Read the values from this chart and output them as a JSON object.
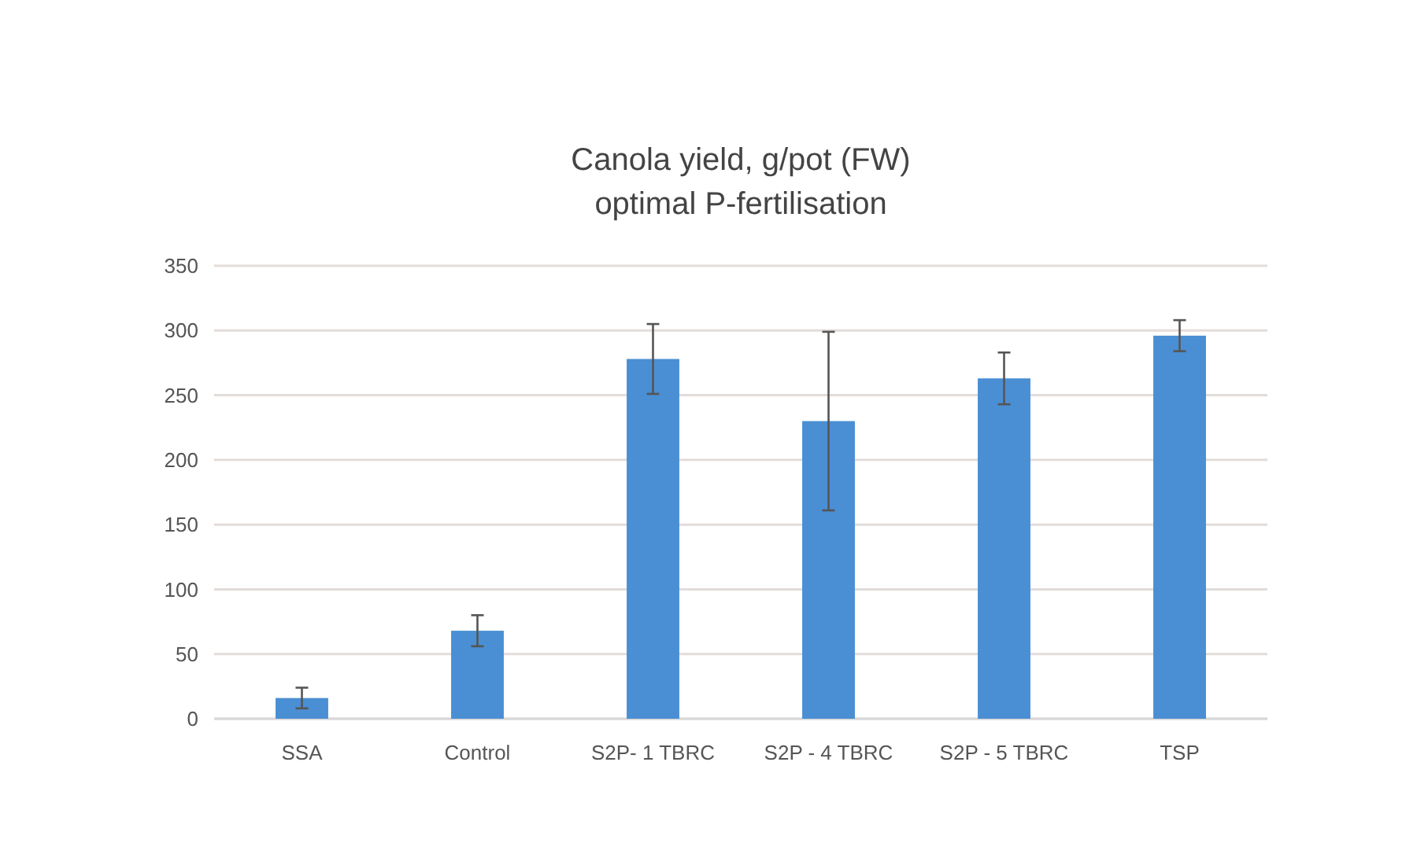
{
  "chart_data": {
    "type": "bar",
    "title": "Canola yield, g/pot (FW)",
    "subtitle": "optimal P-fertilisation",
    "categories": [
      "SSA",
      "Control",
      "S2P- 1 TBRC",
      "S2P - 4 TBRC",
      "S2P - 5 TBRC",
      "TSP"
    ],
    "values": [
      16,
      68,
      278,
      230,
      263,
      296
    ],
    "errors": [
      8,
      12,
      27,
      69,
      20,
      12
    ],
    "color": "#4a8fd4",
    "ylim": [
      0,
      350
    ],
    "yticks": [
      0,
      50,
      100,
      150,
      200,
      250,
      300,
      350
    ],
    "grid": "y"
  }
}
